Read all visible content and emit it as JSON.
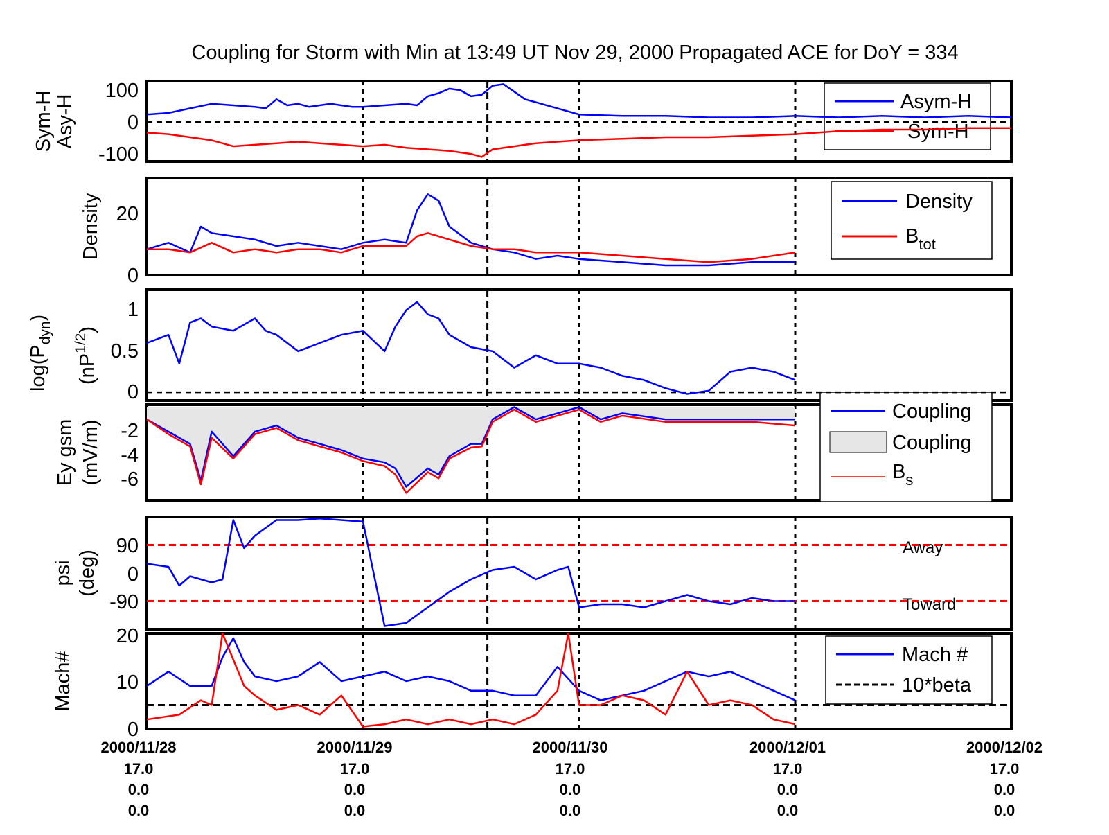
{
  "title": "Coupling for Storm with Min at 13:49 UT Nov 29, 2000  Propagated ACE for DoY = 334",
  "colors": {
    "blue": "#0000ff",
    "red": "#ff0000",
    "black": "#000000",
    "fill": "#e6e6e6"
  },
  "x_axis": {
    "range": [
      "2000/11/28",
      "2000/12/02"
    ],
    "ticks": [
      {
        "date": "2000/11/28",
        "l2": "17.0",
        "l3": "0.0",
        "l4": "0.0"
      },
      {
        "date": "2000/11/29",
        "l2": "17.0",
        "l3": "0.0",
        "l4": "0.0"
      },
      {
        "date": "2000/11/30",
        "l2": "17.0",
        "l3": "0.0",
        "l4": "0.0"
      },
      {
        "date": "2000/12/01",
        "l2": "17.0",
        "l3": "0.0",
        "l4": "0.0"
      },
      {
        "date": "2000/12/02",
        "l2": "17.0",
        "l3": "0.0",
        "l4": "0.0"
      }
    ],
    "storm_min_marker": "2000/11/29 13:49"
  },
  "panels": [
    {
      "id": "symh",
      "ylabel": [
        "Sym-H",
        "Asy-H"
      ],
      "yticks": [
        "100",
        "0",
        "-100"
      ],
      "legend": [
        {
          "label": "Asym-H",
          "color": "#0000ff"
        },
        {
          "label": "Sym-H",
          "color": "#ff0000"
        }
      ]
    },
    {
      "id": "density",
      "ylabel": [
        "Density"
      ],
      "yticks": [
        "20",
        "0"
      ],
      "legend": [
        {
          "label": "Density",
          "color": "#0000ff"
        },
        {
          "label": "B",
          "sub": "tot",
          "color": "#ff0000"
        }
      ]
    },
    {
      "id": "pdyn",
      "ylabel": [
        "log(P",
        "dyn",
        ")",
        "(nP",
        "1/2",
        ")"
      ],
      "yticks": [
        "1",
        "0.5",
        "0"
      ]
    },
    {
      "id": "ey",
      "ylabel": [
        "Ey gsm",
        "(mV/m)"
      ],
      "yticks": [
        "-2",
        "-4",
        "-6"
      ],
      "legend": [
        {
          "label": "Coupling",
          "type": "line",
          "color": "#0000ff"
        },
        {
          "label": "Coupling",
          "type": "patch",
          "color": "#e6e6e6"
        },
        {
          "label": "B",
          "sub": "s",
          "type": "thin",
          "color": "#ff0000"
        }
      ]
    },
    {
      "id": "psi",
      "ylabel": [
        "psi",
        "(deg)"
      ],
      "yticks": [
        "90",
        "0",
        "-90"
      ],
      "annotations": [
        "Away",
        "Toward"
      ]
    },
    {
      "id": "mach",
      "ylabel": [
        "Mach#"
      ],
      "yticks": [
        "20",
        "10",
        "0"
      ],
      "legend": [
        {
          "label": "Mach #",
          "color": "#0000ff"
        },
        {
          "label": "10*beta",
          "color": "#000000",
          "dashed": true
        }
      ]
    }
  ],
  "chart_data": {
    "type": "line",
    "x_unit": "days since 2000/11/28 00:00",
    "panels": {
      "symh": {
        "ylim": [
          -130,
          135
        ],
        "series": [
          {
            "name": "Asym-H",
            "color": "#0000ff",
            "x": [
              0,
              0.1,
              0.2,
              0.3,
              0.4,
              0.5,
              0.55,
              0.6,
              0.65,
              0.7,
              0.75,
              0.8,
              0.85,
              0.9,
              0.95,
              1.0,
              1.1,
              1.2,
              1.25,
              1.3,
              1.35,
              1.4,
              1.45,
              1.5,
              1.55,
              1.6,
              1.65,
              1.7,
              1.75,
              1.8,
              1.9,
              2.0,
              2.2,
              2.4,
              2.6,
              2.8,
              3.0,
              3.2,
              3.4,
              3.6,
              3.8,
              4.0
            ],
            "y": [
              25,
              30,
              45,
              60,
              55,
              50,
              45,
              75,
              55,
              60,
              50,
              55,
              60,
              55,
              50,
              50,
              55,
              60,
              55,
              85,
              95,
              110,
              105,
              85,
              90,
              120,
              125,
              100,
              75,
              65,
              45,
              25,
              20,
              20,
              15,
              15,
              20,
              15,
              20,
              15,
              20,
              15
            ]
          },
          {
            "name": "Sym-H",
            "color": "#ff0000",
            "x": [
              0,
              0.1,
              0.2,
              0.3,
              0.4,
              0.5,
              0.6,
              0.7,
              0.8,
              0.9,
              1.0,
              1.1,
              1.2,
              1.3,
              1.4,
              1.5,
              1.55,
              1.6,
              1.7,
              1.8,
              1.9,
              2.0,
              2.2,
              2.4,
              2.6,
              2.8,
              3.0,
              3.2,
              3.4,
              3.6,
              3.8,
              4.0
            ],
            "y": [
              -35,
              -40,
              -50,
              -60,
              -80,
              -75,
              -70,
              -65,
              -70,
              -75,
              -80,
              -75,
              -85,
              -90,
              -95,
              -105,
              -115,
              -90,
              -80,
              -70,
              -65,
              -60,
              -55,
              -50,
              -50,
              -45,
              -40,
              -30,
              -25,
              -25,
              -20,
              -20
            ]
          }
        ]
      },
      "density": {
        "ylim": [
          0,
          30
        ],
        "series": [
          {
            "name": "Density",
            "color": "#0000ff",
            "x": [
              0,
              0.1,
              0.2,
              0.25,
              0.3,
              0.4,
              0.5,
              0.6,
              0.7,
              0.8,
              0.9,
              1.0,
              1.1,
              1.2,
              1.25,
              1.3,
              1.35,
              1.4,
              1.5,
              1.6,
              1.7,
              1.8,
              1.9,
              2.0,
              2.2,
              2.4,
              2.6,
              2.8,
              3.0
            ],
            "y": [
              8,
              10,
              7,
              15,
              13,
              12,
              11,
              9,
              10,
              9,
              8,
              10,
              11,
              10,
              20,
              25,
              23,
              15,
              10,
              8,
              7,
              5,
              6,
              5,
              4,
              3,
              3,
              4,
              4
            ]
          },
          {
            "name": "B tot",
            "color": "#ff0000",
            "x": [
              0,
              0.1,
              0.2,
              0.3,
              0.4,
              0.5,
              0.6,
              0.7,
              0.8,
              0.9,
              1.0,
              1.1,
              1.2,
              1.25,
              1.3,
              1.4,
              1.5,
              1.6,
              1.7,
              1.8,
              1.9,
              2.0,
              2.2,
              2.4,
              2.6,
              2.8,
              3.0
            ],
            "y": [
              8,
              8,
              7,
              10,
              7,
              8,
              7,
              8,
              8,
              7,
              9,
              9,
              9,
              12,
              13,
              11,
              9,
              8,
              8,
              7,
              7,
              7,
              6,
              5,
              4,
              5,
              7
            ]
          }
        ]
      },
      "pdyn": {
        "ylim": [
          -0.1,
          1.25
        ],
        "series": [
          {
            "name": "log(Pdyn)",
            "color": "#0000ff",
            "x": [
              0,
              0.1,
              0.15,
              0.2,
              0.25,
              0.3,
              0.4,
              0.5,
              0.55,
              0.6,
              0.7,
              0.8,
              0.9,
              1.0,
              1.1,
              1.15,
              1.2,
              1.25,
              1.3,
              1.35,
              1.4,
              1.5,
              1.6,
              1.7,
              1.8,
              1.9,
              2.0,
              2.1,
              2.2,
              2.3,
              2.4,
              2.5,
              2.6,
              2.7,
              2.8,
              2.9,
              3.0
            ],
            "y": [
              0.6,
              0.7,
              0.35,
              0.85,
              0.9,
              0.8,
              0.75,
              0.9,
              0.75,
              0.7,
              0.5,
              0.6,
              0.7,
              0.75,
              0.5,
              0.8,
              1.0,
              1.1,
              0.95,
              0.9,
              0.7,
              0.55,
              0.5,
              0.3,
              0.45,
              0.35,
              0.35,
              0.3,
              0.2,
              0.15,
              0.05,
              -0.02,
              0.02,
              0.25,
              0.3,
              0.25,
              0.15
            ]
          }
        ]
      },
      "ey": {
        "ylim": [
          -7.6,
          0.2
        ],
        "series": [
          {
            "name": "Coupling",
            "color": "#0000ff",
            "x": [
              0,
              0.1,
              0.2,
              0.25,
              0.3,
              0.4,
              0.45,
              0.5,
              0.6,
              0.7,
              0.8,
              0.9,
              1.0,
              1.1,
              1.15,
              1.2,
              1.3,
              1.35,
              1.4,
              1.5,
              1.55,
              1.6,
              1.7,
              1.8,
              1.9,
              2.0,
              2.1,
              2.2,
              2.4,
              2.6,
              2.8,
              3.0
            ],
            "y": [
              -1,
              -2,
              -3,
              -6,
              -2,
              -4,
              -3,
              -2,
              -1.5,
              -2.5,
              -3,
              -3.5,
              -4.2,
              -4.5,
              -5,
              -6.5,
              -5,
              -5.5,
              -4,
              -3,
              -3,
              -1,
              0,
              -1,
              -0.5,
              0,
              -1,
              -0.5,
              -1,
              -1,
              -1,
              -1
            ]
          },
          {
            "name": "B s",
            "color": "#ff0000",
            "x": [
              0,
              0.1,
              0.2,
              0.25,
              0.3,
              0.4,
              0.45,
              0.5,
              0.6,
              0.7,
              0.8,
              0.9,
              1.0,
              1.1,
              1.15,
              1.2,
              1.3,
              1.35,
              1.4,
              1.5,
              1.55,
              1.6,
              1.7,
              1.8,
              1.9,
              2.0,
              2.1,
              2.2,
              2.4,
              2.6,
              2.8,
              3.0
            ],
            "y": [
              -1,
              -2.2,
              -3.2,
              -6.3,
              -2.5,
              -4.2,
              -3.2,
              -2.2,
              -1.7,
              -2.7,
              -3.2,
              -3.7,
              -4.4,
              -4.8,
              -5.5,
              -7,
              -5.3,
              -5.8,
              -4.2,
              -3.3,
              -3.2,
              -1.2,
              -0.2,
              -1.2,
              -0.7,
              -0.2,
              -1.2,
              -0.7,
              -1.2,
              -1.2,
              -1.2,
              -1.5
            ]
          }
        ]
      },
      "psi": {
        "ylim": [
          -180,
          180
        ],
        "reference_lines": [
          90,
          -90
        ],
        "series": [
          {
            "name": "psi",
            "color": "#0000ff",
            "x": [
              0,
              0.1,
              0.15,
              0.2,
              0.3,
              0.35,
              0.4,
              0.45,
              0.5,
              0.6,
              0.7,
              0.8,
              0.9,
              1.0,
              1.1,
              1.15,
              1.2,
              1.3,
              1.4,
              1.5,
              1.6,
              1.7,
              1.8,
              1.9,
              1.95,
              2.0,
              2.1,
              2.2,
              2.3,
              2.4,
              2.5,
              2.6,
              2.7,
              2.8,
              2.9,
              3.0
            ],
            "y": [
              30,
              20,
              -40,
              -10,
              -30,
              -20,
              170,
              80,
              120,
              170,
              170,
              175,
              170,
              165,
              -170,
              -165,
              -160,
              -110,
              -60,
              -20,
              10,
              20,
              -20,
              10,
              20,
              -110,
              -100,
              -100,
              -110,
              -90,
              -70,
              -90,
              -100,
              -80,
              -90,
              -90
            ]
          }
        ]
      },
      "mach": {
        "ylim": [
          0,
          20
        ],
        "series": [
          {
            "name": "Mach #",
            "color": "#0000ff",
            "x": [
              0,
              0.1,
              0.2,
              0.3,
              0.35,
              0.4,
              0.45,
              0.5,
              0.6,
              0.7,
              0.8,
              0.9,
              1.0,
              1.1,
              1.2,
              1.3,
              1.4,
              1.5,
              1.6,
              1.7,
              1.8,
              1.9,
              2.0,
              2.1,
              2.2,
              2.3,
              2.4,
              2.5,
              2.6,
              2.7,
              2.8,
              2.9,
              3.0
            ],
            "y": [
              9,
              12,
              9,
              9,
              15,
              19,
              14,
              11,
              10,
              11,
              14,
              10,
              11,
              12,
              10,
              11,
              10,
              8,
              8,
              7,
              7,
              13,
              8,
              6,
              7,
              8,
              10,
              12,
              11,
              12,
              10,
              8,
              6
            ]
          },
          {
            "name": "10*beta",
            "color": "#000000",
            "dashed": true,
            "x": [
              0,
              4
            ],
            "y": [
              5,
              5
            ]
          },
          {
            "name": "red",
            "color": "#ff0000",
            "x": [
              0,
              0.15,
              0.25,
              0.3,
              0.35,
              0.45,
              0.5,
              0.6,
              0.7,
              0.8,
              0.9,
              1.0,
              1.1,
              1.2,
              1.3,
              1.4,
              1.5,
              1.6,
              1.7,
              1.8,
              1.9,
              1.95,
              2.0,
              2.1,
              2.2,
              2.3,
              2.4,
              2.5,
              2.6,
              2.7,
              2.8,
              2.9,
              3.0
            ],
            "y": [
              2,
              3,
              6,
              5,
              20,
              9,
              7,
              4,
              5,
              3,
              7,
              0.5,
              1,
              2,
              1,
              2,
              1,
              2,
              1,
              3,
              8,
              20,
              5,
              5,
              7,
              6,
              3,
              12,
              5,
              6,
              5,
              2,
              1
            ]
          }
        ]
      }
    }
  }
}
